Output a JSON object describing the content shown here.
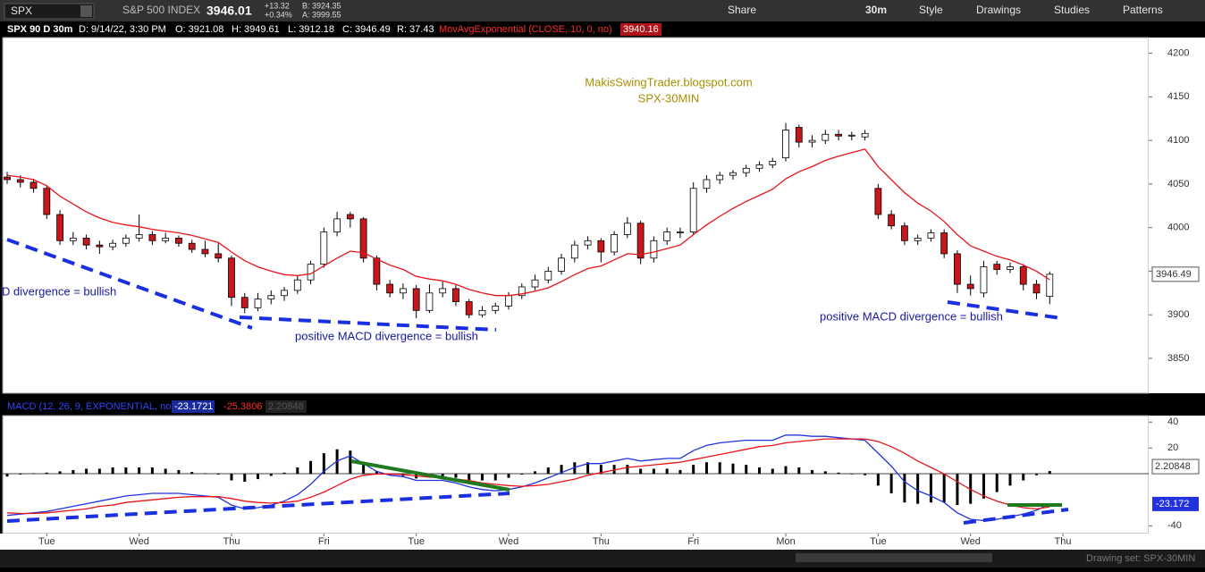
{
  "toolbar": {
    "symbol": "SPX",
    "description": "S&P 500 INDEX",
    "last": "3946.01",
    "change": "+13.32",
    "change_pct": "+0.34%",
    "bid": "B: 3924.35",
    "ask": "A: 3999.55",
    "buttons": [
      "Share",
      "30m",
      "Style",
      "Drawings",
      "Studies",
      "Patterns"
    ]
  },
  "header": {
    "symbol_period": "SPX 90 D 30m",
    "date": "D: 9/14/22, 3:30 PM",
    "ohlc_labels": [
      "O:",
      "H:",
      "L:",
      "C:"
    ],
    "range": "R: 37.43"
  },
  "chart_data": [
    {
      "type": "candlestick",
      "annotations": [
        "MakisSwingTrader.blogspot.com",
        "SPX-30MIN",
        "D divergence = bullish",
        "positive MACD divergence = bullish",
        "positive MACD divergence = bullish"
      ],
      "ohlc": [
        [
          4058,
          4064,
          4050,
          4055
        ],
        [
          4055,
          4060,
          4046,
          4052
        ],
        [
          4052,
          4056,
          4040,
          4045
        ],
        [
          4045,
          4048,
          4010,
          4015
        ],
        [
          4015,
          4020,
          3980,
          3985
        ],
        [
          3985,
          3995,
          3980,
          3988
        ],
        [
          3988,
          3992,
          3975,
          3980
        ],
        [
          3980,
          3985,
          3970,
          3978
        ],
        [
          3978,
          3986,
          3974,
          3982
        ],
        [
          3982,
          3992,
          3978,
          3988
        ],
        [
          3988,
          4015,
          3984,
          3992
        ],
        [
          3992,
          3996,
          3980,
          3985
        ],
        [
          3985,
          3994,
          3982,
          3988
        ],
        [
          3988,
          3991,
          3978,
          3982
        ],
        [
          3982,
          3986,
          3971,
          3975
        ],
        [
          3975,
          3985,
          3966,
          3970
        ],
        [
          3970,
          3982,
          3960,
          3965
        ],
        [
          3965,
          3968,
          3910,
          3920
        ],
        [
          3920,
          3925,
          3902,
          3908
        ],
        [
          3908,
          3925,
          3904,
          3918
        ],
        [
          3918,
          3928,
          3912,
          3922
        ],
        [
          3922,
          3932,
          3916,
          3928
        ],
        [
          3928,
          3945,
          3924,
          3940
        ],
        [
          3940,
          3962,
          3935,
          3958
        ],
        [
          3958,
          4000,
          3954,
          3995
        ],
        [
          3995,
          4018,
          3990,
          4010
        ],
        [
          4015,
          4018,
          4000,
          4010
        ],
        [
          4010,
          4012,
          3960,
          3965
        ],
        [
          3965,
          3968,
          3928,
          3935
        ],
        [
          3935,
          3940,
          3920,
          3925
        ],
        [
          3925,
          3936,
          3918,
          3930
        ],
        [
          3930,
          3934,
          3896,
          3905
        ],
        [
          3905,
          3935,
          3902,
          3925
        ],
        [
          3925,
          3938,
          3920,
          3930
        ],
        [
          3930,
          3934,
          3910,
          3915
        ],
        [
          3915,
          3918,
          3896,
          3900
        ],
        [
          3900,
          3910,
          3897,
          3905
        ],
        [
          3905,
          3914,
          3901,
          3910
        ],
        [
          3910,
          3926,
          3906,
          3922
        ],
        [
          3922,
          3936,
          3918,
          3932
        ],
        [
          3932,
          3946,
          3928,
          3940
        ],
        [
          3940,
          3955,
          3936,
          3950
        ],
        [
          3950,
          3970,
          3946,
          3965
        ],
        [
          3965,
          3985,
          3960,
          3980
        ],
        [
          3980,
          3990,
          3975,
          3985
        ],
        [
          3985,
          3988,
          3960,
          3972
        ],
        [
          3972,
          3996,
          3968,
          3992
        ],
        [
          3992,
          4012,
          3988,
          4005
        ],
        [
          4005,
          4008,
          3958,
          3965
        ],
        [
          3965,
          3990,
          3960,
          3985
        ],
        [
          3985,
          4000,
          3980,
          3995
        ],
        [
          3995,
          4000,
          3988,
          3995
        ],
        [
          3995,
          4052,
          3992,
          4045
        ],
        [
          4045,
          4060,
          4040,
          4055
        ],
        [
          4055,
          4064,
          4050,
          4060
        ],
        [
          4060,
          4066,
          4055,
          4063
        ],
        [
          4063,
          4072,
          4058,
          4068
        ],
        [
          4068,
          4076,
          4064,
          4072
        ],
        [
          4072,
          4080,
          4068,
          4076
        ],
        [
          4080,
          4120,
          4076,
          4112
        ],
        [
          4115,
          4118,
          4092,
          4098
        ],
        [
          4098,
          4106,
          4092,
          4100
        ],
        [
          4100,
          4112,
          4096,
          4107
        ],
        [
          4107,
          4112,
          4100,
          4105
        ],
        [
          4105,
          4110,
          4100,
          4106
        ],
        [
          4104,
          4112,
          4100,
          4108
        ],
        [
          4045,
          4050,
          4010,
          4015
        ],
        [
          4015,
          4020,
          3998,
          4002
        ],
        [
          4002,
          4006,
          3980,
          3985
        ],
        [
          3985,
          3992,
          3980,
          3988
        ],
        [
          3988,
          3998,
          3984,
          3994
        ],
        [
          3994,
          3998,
          3965,
          3970
        ],
        [
          3970,
          3974,
          3925,
          3935
        ],
        [
          3935,
          3945,
          3922,
          3930
        ],
        [
          3925,
          3962,
          3920,
          3955
        ],
        [
          3958,
          3962,
          3946,
          3952
        ],
        [
          3952,
          3960,
          3948,
          3955
        ],
        [
          3955,
          3958,
          3928,
          3935
        ],
        [
          3935,
          3940,
          3918,
          3925
        ],
        [
          3921.08,
          3949.61,
          3912.18,
          3946.49
        ]
      ],
      "up_color": "#ffffff",
      "down_color": "#c8161d",
      "series": [
        {
          "name": "MovAvgExponential (CLOSE, 10, 0, no)",
          "color": "#e8141a",
          "values": [
            4060,
            4058,
            4055,
            4048,
            4036,
            4027,
            4018,
            4011,
            4006,
            4003,
            4001,
            3998,
            3996,
            3994,
            3991,
            3987,
            3983,
            3972,
            3962,
            3955,
            3950,
            3946,
            3945,
            3947,
            3956,
            3965,
            3973,
            3971,
            3964,
            3957,
            3952,
            3944,
            3941,
            3939,
            3935,
            3929,
            3925,
            3922,
            3922,
            3924,
            3927,
            3931,
            3938,
            3946,
            3953,
            3956,
            3963,
            3970,
            3969,
            3972,
            3976,
            3980,
            3992,
            4003,
            4013,
            4022,
            4030,
            4037,
            4044,
            4056,
            4064,
            4070,
            4077,
            4082,
            4086,
            4090,
            4070,
            4055,
            4040,
            4028,
            4019,
            4007,
            3992,
            3979,
            3973,
            3967,
            3963,
            3957,
            3950,
            3940.16
          ]
        }
      ],
      "xlim": [
        -0.34,
        86.5
      ],
      "ylim": [
        3810,
        4218
      ],
      "yticks": [
        3850,
        3900,
        3950,
        4000,
        4050,
        4100,
        4150,
        4200
      ]
    },
    {
      "type": "macd",
      "title": "MACD (12, 26, 9, EXPONENTIAL, no)",
      "series": [
        {
          "color": "#2233dd",
          "values": [
            -32,
            -31,
            -30,
            -29,
            -27,
            -25,
            -23,
            -21,
            -19,
            -17,
            -16,
            -15,
            -15,
            -15,
            -16,
            -17,
            -18,
            -24,
            -27,
            -26,
            -24,
            -21,
            -16,
            -8,
            2,
            10,
            14,
            8,
            2,
            -1,
            -2,
            -5,
            -5,
            -5,
            -7,
            -10,
            -12,
            -13,
            -12,
            -10,
            -7,
            -3,
            1,
            5,
            8,
            8,
            10,
            12,
            10,
            11,
            12,
            12,
            18,
            22,
            24,
            25,
            26,
            26,
            26,
            30,
            30,
            29,
            29,
            28,
            27,
            26,
            16,
            6,
            -6,
            -13,
            -17,
            -22,
            -30,
            -35,
            -36,
            -35,
            -33,
            -31,
            -28,
            -23.1721
          ]
        },
        {
          "color": "#e8141a",
          "values": [
            -30,
            -30.5,
            -30.5,
            -30,
            -29,
            -28,
            -27,
            -25,
            -24,
            -22,
            -21,
            -20,
            -19,
            -18,
            -17.5,
            -17.5,
            -17.5,
            -19,
            -21,
            -22,
            -22.5,
            -22,
            -21,
            -18,
            -14,
            -9,
            -4,
            -1,
            0,
            0,
            -0.5,
            -1.5,
            -2.5,
            -3,
            -4,
            -5,
            -7,
            -8,
            -9,
            -9.5,
            -9,
            -8,
            -6,
            -4,
            -1,
            1,
            3,
            5,
            6,
            7,
            8,
            9,
            11,
            13,
            15,
            17,
            19,
            21,
            22,
            24,
            25,
            26,
            27,
            27,
            27,
            27,
            25,
            21,
            16,
            10,
            5,
            0,
            -6,
            -12,
            -17,
            -21,
            -24,
            -26,
            -27,
            -25.3806
          ]
        }
      ],
      "histogram": {
        "color": "#000000",
        "values": [
          -2,
          -0.5,
          0.5,
          1,
          2,
          3,
          4,
          4,
          5,
          5,
          5,
          5,
          4,
          3,
          1.5,
          0.5,
          -0.5,
          -5,
          -6,
          -4,
          -1.5,
          1,
          5,
          10,
          16,
          19,
          18,
          9,
          2,
          -1,
          -1.5,
          -3.5,
          -2.5,
          -2,
          -3,
          -5,
          -5,
          -5,
          -3,
          -0.5,
          2,
          5,
          7,
          9,
          9,
          7,
          7,
          7,
          4,
          4,
          4,
          3,
          7,
          9,
          9,
          8,
          7,
          5,
          4,
          6,
          5,
          3,
          2,
          1,
          0,
          -1,
          -9,
          -15,
          -22,
          -23,
          -22,
          -22,
          -24,
          -23,
          -19,
          -14,
          -9,
          -5,
          -1,
          2.20848
        ]
      },
      "macd_label": "-23.172",
      "xlim": [
        -0.34,
        86.5
      ],
      "ylim": [
        -46,
        45
      ],
      "yticks": [
        -40,
        20,
        40
      ],
      "xticks": [
        {
          "value": 3,
          "label": "Tue"
        },
        {
          "value": 10,
          "label": "Wed"
        },
        {
          "value": 17,
          "label": "Thu"
        },
        {
          "value": 24,
          "label": "Fri"
        },
        {
          "value": 31,
          "label": "Tue"
        },
        {
          "value": 38,
          "label": "Wed"
        },
        {
          "value": 45,
          "label": "Thu"
        },
        {
          "value": 52,
          "label": "Fri"
        },
        {
          "value": 59,
          "label": "Mon"
        },
        {
          "value": 66,
          "label": "Tue"
        },
        {
          "value": 73,
          "label": "Wed"
        },
        {
          "value": 80,
          "label": "Thu"
        }
      ]
    }
  ],
  "footer": {
    "drawing_set": "Drawing set: SPX-30MIN"
  }
}
